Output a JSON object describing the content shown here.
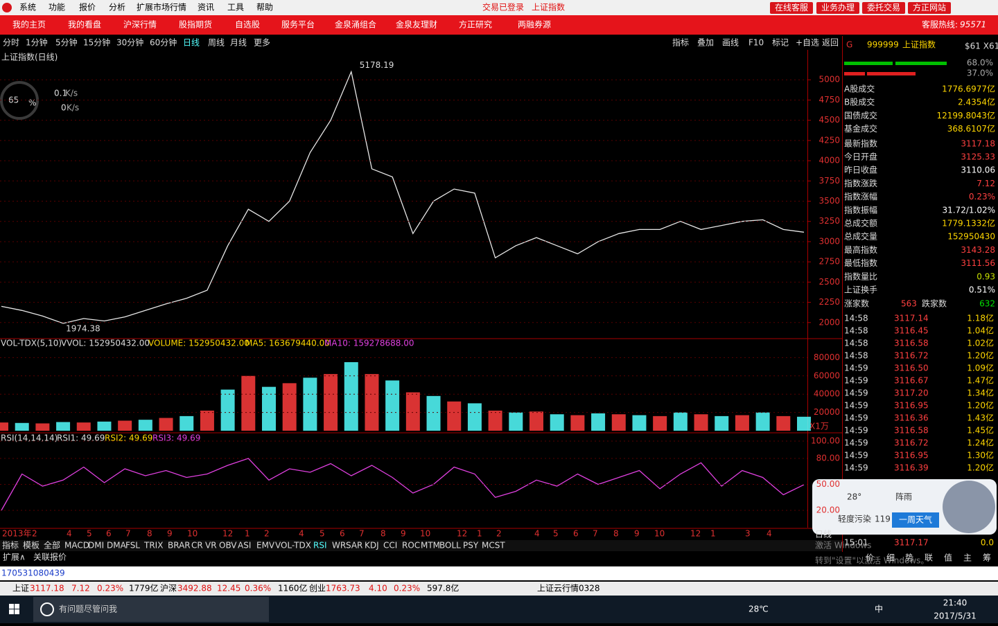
{
  "menu": {
    "items": [
      "系统",
      "功能",
      "报价",
      "分析",
      "扩展市场行情",
      "资讯",
      "工具",
      "帮助"
    ],
    "status": [
      "交易已登录",
      "上证指数"
    ],
    "buttons": [
      "在线客服",
      "业务办理",
      "委托交易",
      "方正网站"
    ]
  },
  "nav": {
    "items": [
      "我的主页",
      "我的看盘",
      "沪深行情",
      "股指期货",
      "自选股",
      "服务平台",
      "金泉涌组合",
      "金泉友理财",
      "方正研究",
      "两融券源"
    ],
    "hotline_label": "客服热线:",
    "hotline": "95571"
  },
  "toolbar": {
    "periods": [
      "分时",
      "1分钟",
      "5分钟",
      "15分钟",
      "30分钟",
      "60分钟",
      "日线",
      "周线",
      "月线",
      "更多"
    ],
    "tools": [
      "指标",
      "叠加",
      "画线",
      "F10",
      "标记",
      "+自选",
      "返回"
    ]
  },
  "speed": {
    "percent": "65",
    "unit": "%",
    "up": "0.1",
    "down": "0",
    "rate_unit": "K/s"
  },
  "price_chart": {
    "type": "line",
    "title": "上证指数(日线)",
    "color": "#e8e8e8",
    "values": [
      2200,
      2150,
      2080,
      1990,
      2050,
      2020,
      2070,
      2150,
      2230,
      2300,
      2400,
      2950,
      3400,
      3250,
      3500,
      4100,
      4500,
      5100,
      3900,
      3800,
      3100,
      3500,
      3650,
      3600,
      2800,
      2950,
      3050,
      2950,
      2850,
      3000,
      3100,
      3150,
      3150,
      3250,
      3150,
      3200,
      3250,
      3270,
      3150,
      3117
    ],
    "ylim": [
      1810,
      5370
    ],
    "yticks": [
      2000,
      2250,
      2500,
      2750,
      3000,
      3250,
      3500,
      3750,
      4000,
      4250,
      4500,
      4750,
      5000
    ],
    "high": 5178.19,
    "low": 1974.38
  },
  "volume_chart": {
    "type": "bar",
    "title": "VOL-TDX(5,10)",
    "legend": [
      "VVOL: 152950432.00",
      "VOLUME: 152950432.00",
      "MA5: 163679440.00",
      "MA10: 159278688.00"
    ],
    "unit": "X1万",
    "colors": [
      "#ff3c3c",
      "#54ffff"
    ],
    "values": [
      9000,
      8500,
      8000,
      9500,
      9000,
      10000,
      11000,
      12000,
      14000,
      16000,
      22000,
      45000,
      60000,
      48000,
      52000,
      58000,
      62000,
      75000,
      62000,
      55000,
      42000,
      38000,
      32000,
      30000,
      22000,
      20000,
      21000,
      18000,
      17000,
      19000,
      18000,
      17000,
      16000,
      20000,
      18000,
      16000,
      17000,
      20000,
      16000,
      15295
    ],
    "ylim": [
      0,
      100000
    ],
    "yticks": [
      20000,
      40000,
      60000,
      80000
    ]
  },
  "rsi_chart": {
    "type": "line",
    "title": "RSI(14,14,14)",
    "legend": [
      "RSI1: 49.69",
      "RSI2: 49.69",
      "RSI3: 49.69"
    ],
    "color": "#e040e0",
    "values": [
      20,
      62,
      48,
      55,
      70,
      52,
      68,
      60,
      66,
      58,
      62,
      72,
      80,
      55,
      68,
      64,
      74,
      60,
      72,
      58,
      40,
      50,
      70,
      62,
      35,
      42,
      55,
      48,
      62,
      50,
      58,
      66,
      45,
      62,
      75,
      48,
      66,
      58,
      38,
      49.69
    ],
    "ylim": [
      0,
      100
    ],
    "yticks": [
      {
        "value": 20,
        "label": "20.00"
      },
      {
        "value": 50,
        "label": "50.00"
      },
      {
        "value": 80,
        "label": "80.00"
      },
      {
        "value": 100,
        "label": "100.00"
      }
    ]
  },
  "timeline": {
    "labels": [
      "2013年",
      "2",
      "4",
      "5",
      "6",
      "7",
      "8",
      "9",
      "10",
      "12",
      "1",
      "2",
      "4",
      "5",
      "6",
      "7",
      "8",
      "9",
      "10",
      "12",
      "1",
      "2",
      "4",
      "5",
      "6",
      "7",
      "8",
      "9",
      "10",
      "12",
      "1",
      "3",
      "4"
    ],
    "period": "日线"
  },
  "indicators": {
    "tabs": [
      "指标",
      "模板",
      "全部",
      "MACD",
      "DMI",
      "DMA",
      "FSL",
      "TRIX",
      "BRAR",
      "CR",
      "VR",
      "OBV",
      "ASI",
      "EMV",
      "VOL-TDX",
      "RSI",
      "WR",
      "SAR",
      "KDJ",
      "CCI",
      "ROC",
      "MTM",
      "BOLL",
      "PSY",
      "MCST"
    ],
    "extra": [
      "扩展∧",
      "关联报价"
    ]
  },
  "panel": {
    "code": "999999",
    "name": "上证指数",
    "tag": "$61 X61",
    "ratio1": "68.0%",
    "ratio2": "37.0%",
    "stats": [
      [
        "A股成交",
        "1776.6977亿"
      ],
      [
        "B股成交",
        "2.4354亿"
      ],
      [
        "国债成交",
        "12199.8043亿"
      ],
      [
        "基金成交",
        "368.6107亿"
      ],
      [
        "最新指数",
        "3117.18"
      ],
      [
        "今日开盘",
        "3125.33"
      ],
      [
        "昨日收盘",
        "3110.06"
      ],
      [
        "指数涨跌",
        "7.12"
      ],
      [
        "指数涨幅",
        "0.23%"
      ],
      [
        "指数振幅",
        "31.72/1.02%"
      ],
      [
        "总成交额",
        "1779.1332亿"
      ],
      [
        "总成交量",
        "152950430"
      ],
      [
        "最高指数",
        "3143.28"
      ],
      [
        "最低指数",
        "3111.56"
      ],
      [
        "指数量比",
        "0.93"
      ],
      [
        "上证换手",
        "0.51%"
      ]
    ],
    "breadth": [
      "涨家数",
      "563",
      "跌家数",
      "632"
    ],
    "ticks": [
      [
        "14:58",
        "3117.14",
        "1.18亿"
      ],
      [
        "14:58",
        "3116.45",
        "1.04亿"
      ],
      [
        "14:58",
        "3116.58",
        "1.02亿"
      ],
      [
        "14:58",
        "3116.72",
        "1.20亿"
      ],
      [
        "14:59",
        "3116.50",
        "1.09亿"
      ],
      [
        "14:59",
        "3116.67",
        "1.47亿"
      ],
      [
        "14:59",
        "3117.20",
        "1.34亿"
      ],
      [
        "14:59",
        "3116.95",
        "1.20亿"
      ],
      [
        "14:59",
        "3116.36",
        "1.43亿"
      ],
      [
        "14:59",
        "3116.58",
        "1.45亿"
      ],
      [
        "14:59",
        "3116.72",
        "1.24亿"
      ],
      [
        "14:59",
        "3116.95",
        "1.30亿"
      ],
      [
        "14:59",
        "3116.39",
        "1.20亿"
      ],
      [
        "15:01",
        "3117.17",
        "0.0"
      ]
    ],
    "tabs": [
      "价",
      "细",
      "势",
      "联",
      "值",
      "主",
      "筹"
    ]
  },
  "weather": {
    "temp": "28°",
    "condition": "阵雨",
    "air": "轻度污染",
    "aqi": "119",
    "button": "一周天气"
  },
  "watermark": [
    "激活 Windows",
    "转到\"设置\"以激活 Windows。"
  ],
  "status": "170531080439",
  "ticker": [
    "上证",
    "3117.18",
    "7.12",
    "0.23%",
    "1779亿",
    "沪深",
    "3492.88",
    "12.45",
    "0.36%",
    "1160亿",
    "创业",
    "1763.73",
    "4.10",
    "0.23%",
    "597.8亿",
    "上证云行情0328"
  ],
  "taskbar": {
    "search": "有问题尽管问我",
    "temp": "28℃",
    "ime": "中",
    "time": "21:40",
    "date": "2017/5/31"
  }
}
